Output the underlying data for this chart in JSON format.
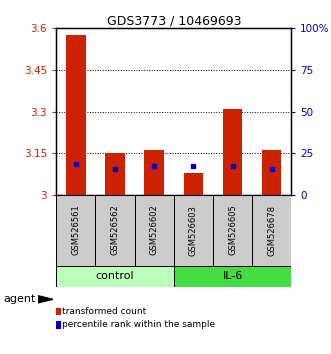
{
  "title": "GDS3773 / 10469693",
  "samples": [
    "GSM526561",
    "GSM526562",
    "GSM526602",
    "GSM526603",
    "GSM526605",
    "GSM526678"
  ],
  "bar_bottom": 3.0,
  "bar_tops": [
    3.575,
    3.152,
    3.16,
    3.08,
    3.31,
    3.162
  ],
  "percentile_values": [
    3.112,
    3.092,
    3.102,
    3.102,
    3.102,
    3.092
  ],
  "bar_color": "#cc2200",
  "percentile_color": "#0000cc",
  "ylim": [
    3.0,
    3.6
  ],
  "yticks_left": [
    3.0,
    3.15,
    3.3,
    3.45,
    3.6
  ],
  "ytick_labels_left": [
    "3",
    "3.15",
    "3.3",
    "3.45",
    "3.6"
  ],
  "yticks_right_vals": [
    0,
    25,
    50,
    75,
    100
  ],
  "ytick_labels_right": [
    "0",
    "25",
    "50",
    "75",
    "100%"
  ],
  "gridlines_at": [
    3.15,
    3.3,
    3.45
  ],
  "group_spans": [
    {
      "xmin": -0.5,
      "xmax": 2.5,
      "label": "control",
      "color": "#bbffbb"
    },
    {
      "xmin": 2.5,
      "xmax": 5.5,
      "label": "IL-6",
      "color": "#44dd44"
    }
  ],
  "agent_label": "agent",
  "legend_items": [
    {
      "label": "transformed count",
      "color": "#cc2200"
    },
    {
      "label": "percentile rank within the sample",
      "color": "#0000cc"
    }
  ],
  "sample_box_color": "#cccccc",
  "bar_width": 0.5
}
